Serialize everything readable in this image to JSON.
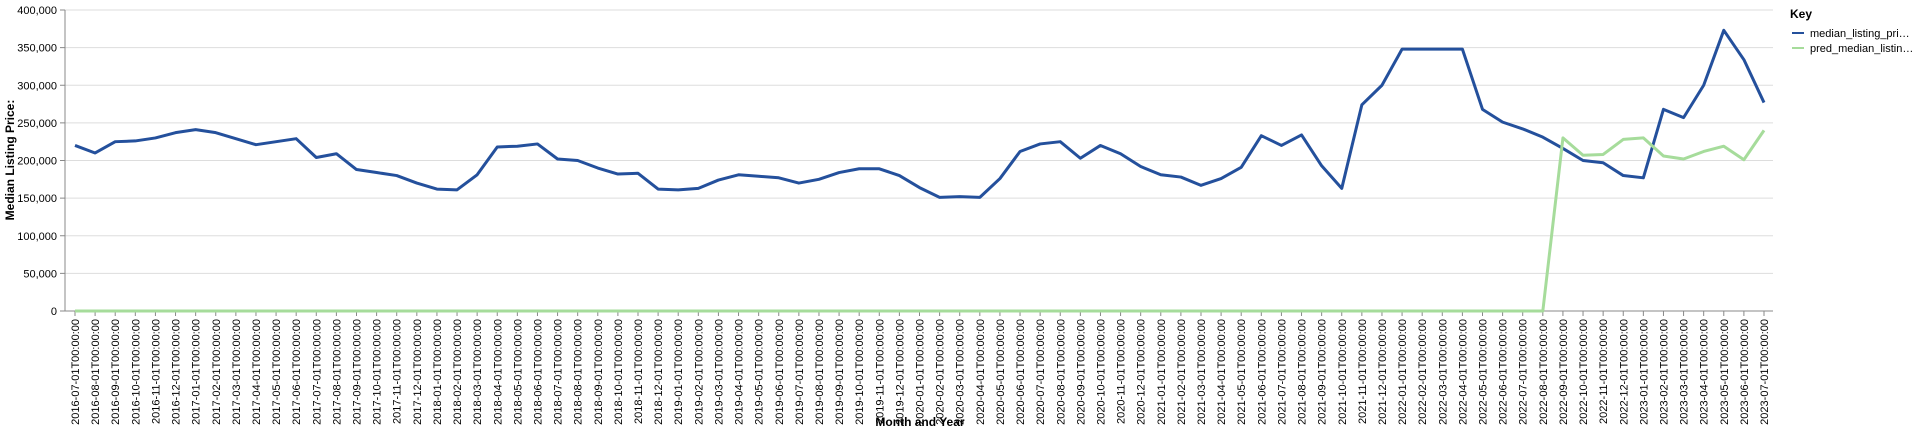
{
  "chart_data": {
    "type": "line",
    "x_label": "Month and Year",
    "y_label": "Median Listing Price:",
    "legend_title": "Key",
    "legend_position": "right",
    "grid": true,
    "categories": [
      "2016-07-01T00:00:00",
      "2016-08-01T00:00:00",
      "2016-09-01T00:00:00",
      "2016-10-01T00:00:00",
      "2016-11-01T00:00:00",
      "2016-12-01T00:00:00",
      "2017-01-01T00:00:00",
      "2017-02-01T00:00:00",
      "2017-03-01T00:00:00",
      "2017-04-01T00:00:00",
      "2017-05-01T00:00:00",
      "2017-06-01T00:00:00",
      "2017-07-01T00:00:00",
      "2017-08-01T00:00:00",
      "2017-09-01T00:00:00",
      "2017-10-01T00:00:00",
      "2017-11-01T00:00:00",
      "2017-12-01T00:00:00",
      "2018-01-01T00:00:00",
      "2018-02-01T00:00:00",
      "2018-03-01T00:00:00",
      "2018-04-01T00:00:00",
      "2018-05-01T00:00:00",
      "2018-06-01T00:00:00",
      "2018-07-01T00:00:00",
      "2018-08-01T00:00:00",
      "2018-09-01T00:00:00",
      "2018-10-01T00:00:00",
      "2018-11-01T00:00:00",
      "2018-12-01T00:00:00",
      "2019-01-01T00:00:00",
      "2019-02-01T00:00:00",
      "2019-03-01T00:00:00",
      "2019-04-01T00:00:00",
      "2019-05-01T00:00:00",
      "2019-06-01T00:00:00",
      "2019-07-01T00:00:00",
      "2019-08-01T00:00:00",
      "2019-09-01T00:00:00",
      "2019-10-01T00:00:00",
      "2019-11-01T00:00:00",
      "2019-12-01T00:00:00",
      "2020-01-01T00:00:00",
      "2020-02-01T00:00:00",
      "2020-03-01T00:00:00",
      "2020-04-01T00:00:00",
      "2020-05-01T00:00:00",
      "2020-06-01T00:00:00",
      "2020-07-01T00:00:00",
      "2020-08-01T00:00:00",
      "2020-09-01T00:00:00",
      "2020-10-01T00:00:00",
      "2020-11-01T00:00:00",
      "2020-12-01T00:00:00",
      "2021-01-01T00:00:00",
      "2021-02-01T00:00:00",
      "2021-03-01T00:00:00",
      "2021-04-01T00:00:00",
      "2021-05-01T00:00:00",
      "2021-06-01T00:00:00",
      "2021-07-01T00:00:00",
      "2021-08-01T00:00:00",
      "2021-09-01T00:00:00",
      "2021-10-01T00:00:00",
      "2021-11-01T00:00:00",
      "2021-12-01T00:00:00",
      "2022-01-01T00:00:00",
      "2022-02-01T00:00:00",
      "2022-03-01T00:00:00",
      "2022-04-01T00:00:00",
      "2022-05-01T00:00:00",
      "2022-06-01T00:00:00",
      "2022-07-01T00:00:00",
      "2022-08-01T00:00:00",
      "2022-09-01T00:00:00",
      "2022-10-01T00:00:00",
      "2022-11-01T00:00:00",
      "2022-12-01T00:00:00",
      "2023-01-01T00:00:00",
      "2023-02-01T00:00:00",
      "2023-03-01T00:00:00",
      "2023-04-01T00:00:00",
      "2023-05-01T00:00:00",
      "2023-06-01T00:00:00",
      "2023-07-01T00:00:00"
    ],
    "series": [
      {
        "name": "median_listing_pri…",
        "color": "#24509c",
        "values": [
          220000,
          210000,
          225000,
          226000,
          230000,
          237000,
          241000,
          237000,
          229000,
          221000,
          225000,
          229000,
          204000,
          209000,
          188000,
          184000,
          180000,
          170000,
          162000,
          161000,
          181000,
          218000,
          219000,
          222000,
          202000,
          200000,
          190000,
          182000,
          183000,
          162000,
          161000,
          163000,
          174000,
          181000,
          179000,
          177000,
          170000,
          175000,
          184000,
          189000,
          189000,
          180000,
          164000,
          151000,
          152000,
          151000,
          176000,
          212000,
          222000,
          225000,
          203000,
          220000,
          209000,
          192000,
          181000,
          178000,
          167000,
          176000,
          191000,
          233000,
          220000,
          234000,
          193000,
          163000,
          274000,
          300000,
          348000,
          348000,
          348000,
          348000,
          268000,
          251000,
          242000,
          231000,
          216000,
          200000,
          197000,
          180000,
          177000,
          268000,
          257000,
          300000,
          373000,
          334000,
          277000
        ]
      },
      {
        "name": "pred_median_listin…",
        "color": "#a6dc9b",
        "values": [
          0,
          0,
          0,
          0,
          0,
          0,
          0,
          0,
          0,
          0,
          0,
          0,
          0,
          0,
          0,
          0,
          0,
          0,
          0,
          0,
          0,
          0,
          0,
          0,
          0,
          0,
          0,
          0,
          0,
          0,
          0,
          0,
          0,
          0,
          0,
          0,
          0,
          0,
          0,
          0,
          0,
          0,
          0,
          0,
          0,
          0,
          0,
          0,
          0,
          0,
          0,
          0,
          0,
          0,
          0,
          0,
          0,
          0,
          0,
          0,
          0,
          0,
          0,
          0,
          0,
          0,
          0,
          0,
          0,
          0,
          0,
          0,
          0,
          0,
          230000,
          207000,
          208000,
          228000,
          230000,
          206000,
          202000,
          212000,
          219000,
          201000,
          240000
        ]
      }
    ],
    "ylim": [
      0,
      400000
    ],
    "yticks": [
      0,
      {
        "value": 50000,
        "label": "50,000"
      },
      {
        "value": 100000,
        "label": "100,000"
      },
      {
        "value": 150000,
        "label": "150,000"
      },
      {
        "value": 200000,
        "label": "200,000"
      },
      {
        "value": 250000,
        "label": "250,000"
      },
      {
        "value": 300000,
        "label": "300,000"
      },
      {
        "value": 350000,
        "label": "350,000"
      },
      {
        "value": 400000,
        "label": "400,000"
      }
    ]
  }
}
